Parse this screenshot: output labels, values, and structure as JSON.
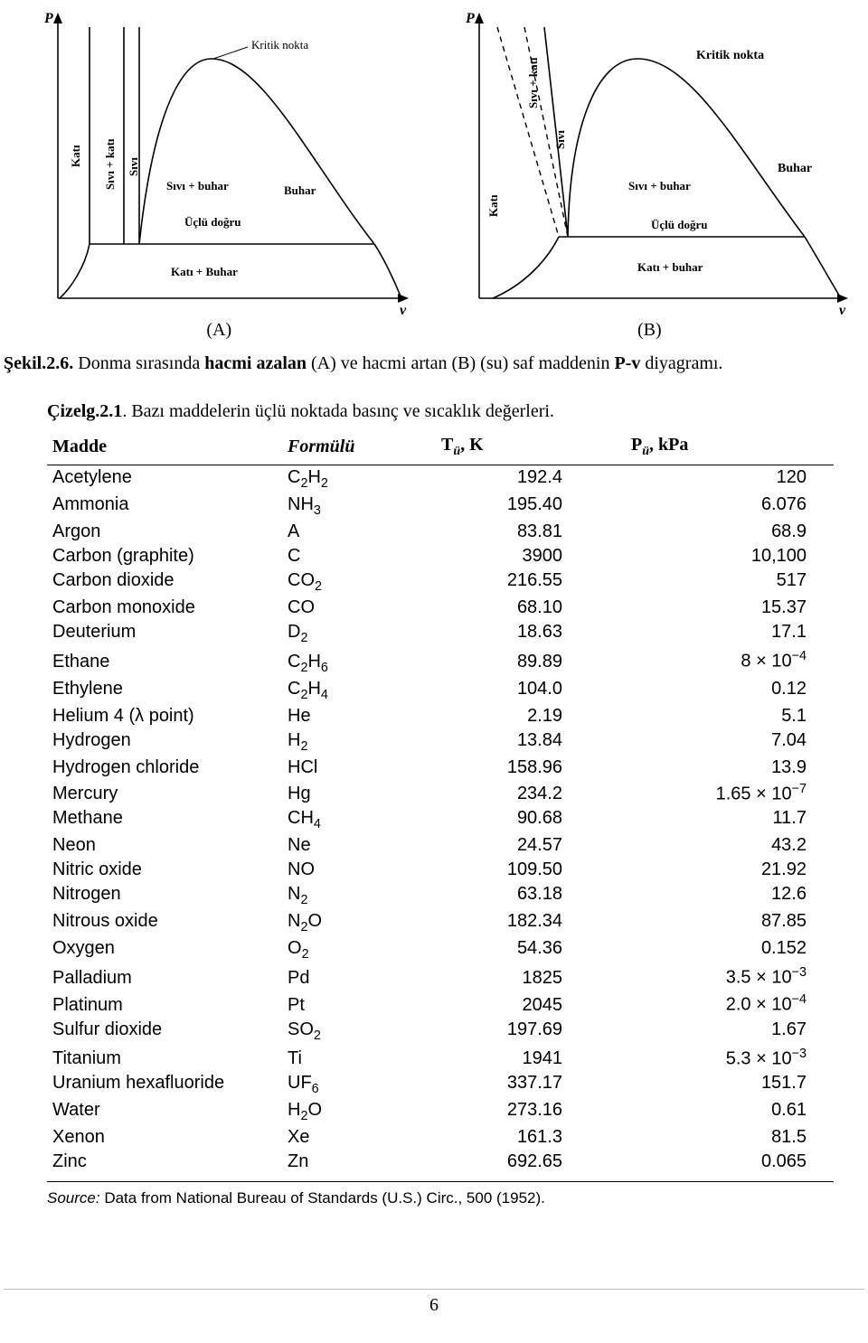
{
  "diagrams": {
    "A": {
      "axis_y": "P",
      "axis_x": "v",
      "labels": {
        "kritik_nokta": "Kritik nokta",
        "kati": "Katı",
        "sivi_kati": "Sıvı + katı",
        "sivi": "Sıvı",
        "sivi_buhar": "Sıvı + buhar",
        "buhar": "Buhar",
        "uclu_dogru": "Üçlü doğru",
        "kati_buhar": "Katı + Buhar"
      },
      "sublabel": "(A)",
      "colors": {
        "stroke": "#000000",
        "bg": "#ffffff",
        "font": "#000000"
      },
      "line_width": 1.6
    },
    "B": {
      "axis_y": "P",
      "axis_x": "v",
      "labels": {
        "kritik_nokta": "Kritik nokta",
        "kati": "Katı",
        "sivi_kati": "Sıvı + katı",
        "sivi": "Sıvı",
        "sivi_buhar": "Sıvı + buhar",
        "buhar": "Buhar",
        "uclu_dogru": "Üçlü doğru",
        "kati_buhar": "Katı + buhar"
      },
      "sublabel": "(B)",
      "colors": {
        "stroke": "#000000",
        "bg": "#ffffff",
        "font": "#000000",
        "dash": "5,4"
      },
      "line_width": 1.6
    }
  },
  "figure_caption": {
    "prefix": "Şekil.2.6.",
    "mid1": " Donma sırasında ",
    "bold1": "hacmi azalan",
    "mid2": "  (A) ve hacmi artan (B) (su) saf maddenin ",
    "bold2": "P-v",
    "suffix": "  diyagramı."
  },
  "table_caption": {
    "prefix": "Çizelg.2.1",
    "rest": ". Bazı maddelerin üçlü noktada basınç ve sıcaklık değerleri."
  },
  "table": {
    "headers": {
      "c1": "Madde",
      "c2": "Formülü",
      "c3_pre": "T",
      "c3_sub": "ü",
      "c3_post": ", K",
      "c4_pre": "P",
      "c4_sub": "ü",
      "c4_post": ", kPa"
    },
    "rows": [
      {
        "name": "Acetylene",
        "formula": "C<sub>2</sub>H<sub>2</sub>",
        "t": "192.4",
        "p": "120"
      },
      {
        "name": "Ammonia",
        "formula": "NH<sub>3</sub>",
        "t": "195.40",
        "p": "6.076"
      },
      {
        "name": "Argon",
        "formula": "A",
        "t": "83.81",
        "p": "68.9"
      },
      {
        "name": "Carbon (graphite)",
        "formula": "C",
        "t": "3900",
        "p": "10,100"
      },
      {
        "name": "Carbon dioxide",
        "formula": "CO<sub>2</sub>",
        "t": "216.55",
        "p": "517"
      },
      {
        "name": "Carbon monoxide",
        "formula": "CO",
        "t": "68.10",
        "p": "15.37"
      },
      {
        "name": "Deuterium",
        "formula": "D<sub>2</sub>",
        "t": "18.63",
        "p": "17.1"
      },
      {
        "name": "Ethane",
        "formula": "C<sub>2</sub>H<sub>6</sub>",
        "t": "89.89",
        "p": "8 × 10<sup>−4</sup>"
      },
      {
        "name": "Ethylene",
        "formula": "C<sub>2</sub>H<sub>4</sub>",
        "t": "104.0",
        "p": "0.12"
      },
      {
        "name": "Helium 4 (λ point)",
        "formula": "He",
        "t": "2.19",
        "p": "5.1"
      },
      {
        "name": "Hydrogen",
        "formula": "H<sub>2</sub>",
        "t": "13.84",
        "p": "7.04"
      },
      {
        "name": "Hydrogen chloride",
        "formula": "HCl",
        "t": "158.96",
        "p": "13.9"
      },
      {
        "name": "Mercury",
        "formula": "Hg",
        "t": "234.2",
        "p": "1.65 × 10<sup>−7</sup>"
      },
      {
        "name": "Methane",
        "formula": "CH<sub>4</sub>",
        "t": "90.68",
        "p": "11.7"
      },
      {
        "name": "Neon",
        "formula": "Ne",
        "t": "24.57",
        "p": "43.2"
      },
      {
        "name": "Nitric oxide",
        "formula": "NO",
        "t": "109.50",
        "p": "21.92"
      },
      {
        "name": "Nitrogen",
        "formula": "N<sub>2</sub>",
        "t": "63.18",
        "p": "12.6"
      },
      {
        "name": "Nitrous oxide",
        "formula": "N<sub>2</sub>O",
        "t": "182.34",
        "p": "87.85"
      },
      {
        "name": "Oxygen",
        "formula": "O<sub>2</sub>",
        "t": "54.36",
        "p": "0.152"
      },
      {
        "name": "Palladium",
        "formula": "Pd",
        "t": "1825",
        "p": "3.5 × 10<sup>−3</sup>"
      },
      {
        "name": "Platinum",
        "formula": "Pt",
        "t": "2045",
        "p": "2.0 × 10<sup>−4</sup>"
      },
      {
        "name": "Sulfur dioxide",
        "formula": "SO<sub>2</sub>",
        "t": "197.69",
        "p": "1.67"
      },
      {
        "name": "Titanium",
        "formula": "Ti",
        "t": "1941",
        "p": "5.3 × 10<sup>−3</sup>"
      },
      {
        "name": "Uranium hexafluoride",
        "formula": "UF<sub>6</sub>",
        "t": "337.17",
        "p": "151.7"
      },
      {
        "name": "Water",
        "formula": "H<sub>2</sub>O",
        "t": "273.16",
        "p": "0.61"
      },
      {
        "name": "Xenon",
        "formula": "Xe",
        "t": "161.3",
        "p": "81.5"
      },
      {
        "name": "Zinc",
        "formula": "Zn",
        "t": "692.65",
        "p": "0.065"
      }
    ],
    "col_widths": {
      "c1": "260px",
      "c2": "170px",
      "c3": "210px",
      "c4": "230px"
    }
  },
  "source_line": {
    "italic": "Source:",
    "rest": " Data from National Bureau of Standards (U.S.) Circ., 500 (1952)."
  },
  "page_number": "6"
}
